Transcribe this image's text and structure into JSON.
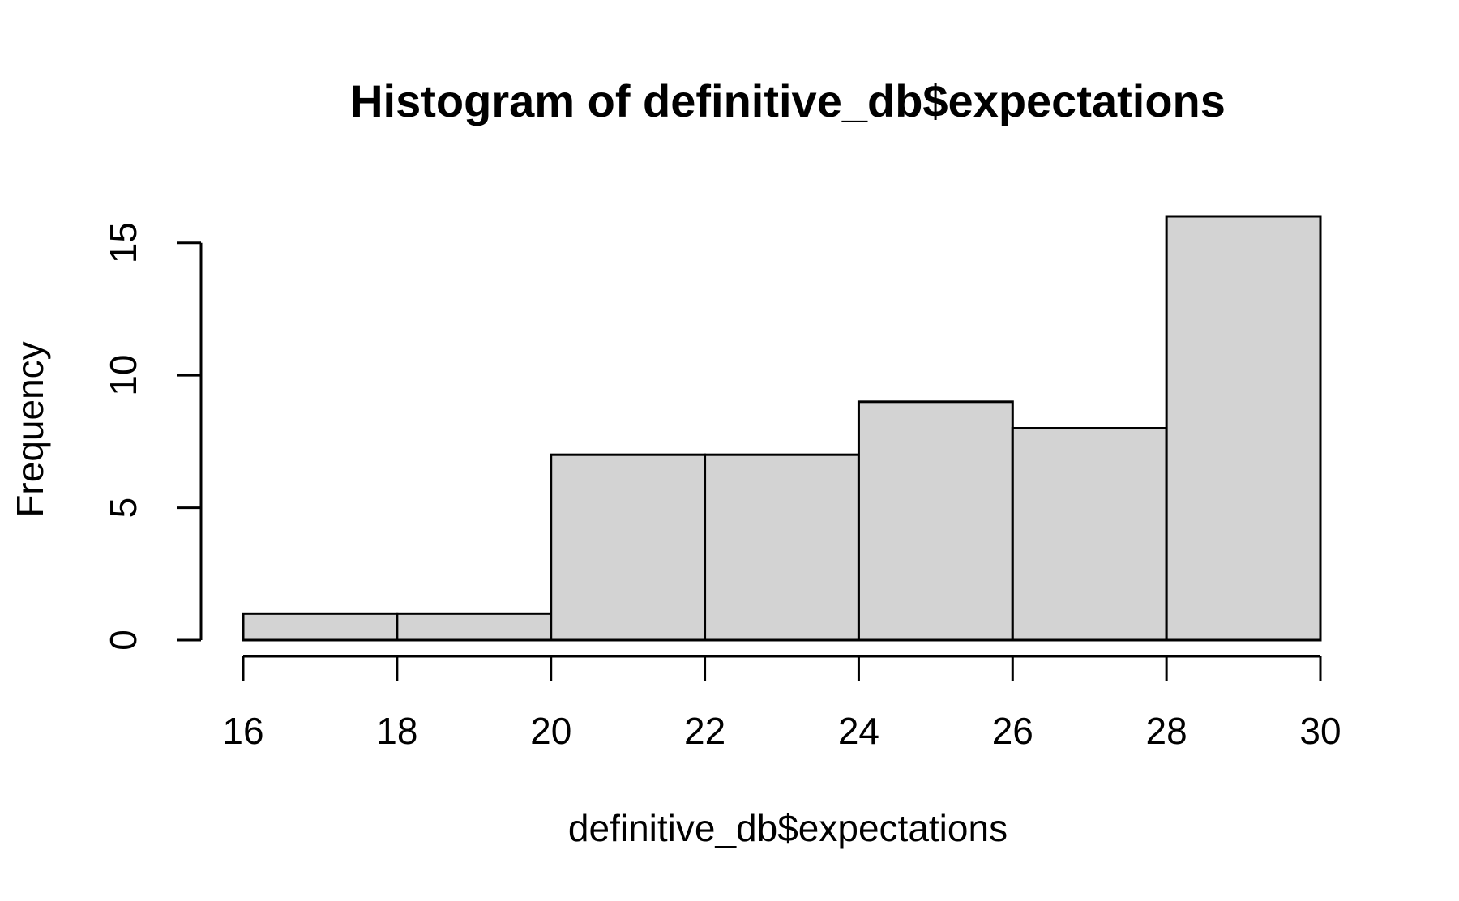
{
  "chart_data": {
    "type": "bar",
    "title": "Histogram of definitive_db$expectations",
    "xlabel": "definitive_db$expectations",
    "ylabel": "Frequency",
    "bins": [
      {
        "from": 16,
        "to": 18,
        "count": 1
      },
      {
        "from": 18,
        "to": 20,
        "count": 1
      },
      {
        "from": 20,
        "to": 22,
        "count": 7
      },
      {
        "from": 22,
        "to": 24,
        "count": 7
      },
      {
        "from": 24,
        "to": 26,
        "count": 9
      },
      {
        "from": 26,
        "to": 28,
        "count": 8
      },
      {
        "from": 28,
        "to": 30,
        "count": 16
      }
    ],
    "xticks": [
      16,
      18,
      20,
      22,
      24,
      26,
      28,
      30
    ],
    "yticks": [
      0,
      5,
      10,
      15
    ],
    "xlim": [
      16,
      30
    ],
    "ylim": [
      0,
      16
    ],
    "bar_color": "#d3d3d3",
    "grid": false,
    "legend": "none"
  }
}
